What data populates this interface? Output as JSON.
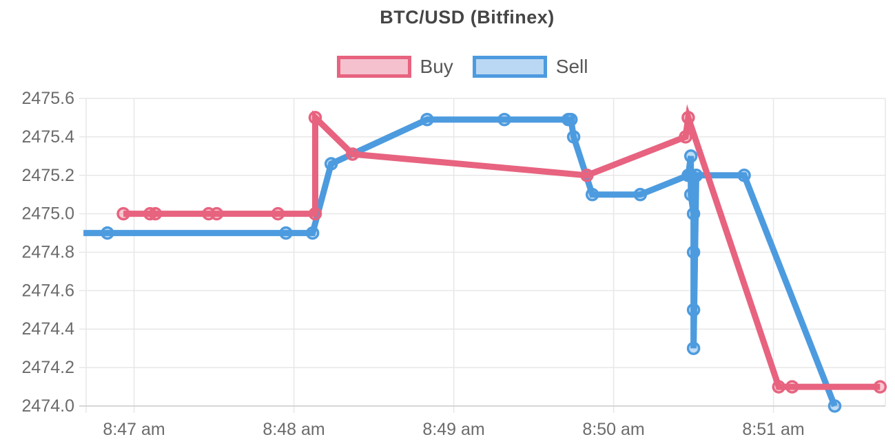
{
  "chart_data": {
    "type": "line",
    "title": "BTC/USD (Bitfinex)",
    "legend_position": "top",
    "grid": true,
    "x_axis": {
      "start": "8:46:42",
      "end": "8:51:42",
      "ticks": [
        {
          "label": "8:47 am",
          "time": "8:47:00"
        },
        {
          "label": "8:48 am",
          "time": "8:48:00"
        },
        {
          "label": "8:49 am",
          "time": "8:49:00"
        },
        {
          "label": "8:50 am",
          "time": "8:50:00"
        },
        {
          "label": "8:51 am",
          "time": "8:51:00"
        }
      ]
    },
    "y_axis": {
      "min": 2474.0,
      "max": 2475.6,
      "tick_step": 0.2,
      "ticks": [
        2475.6,
        2475.4,
        2475.2,
        2475.0,
        2474.8,
        2474.6,
        2474.4,
        2474.2,
        2474.0
      ]
    },
    "colors": {
      "grid": "#e7e7e7",
      "axis_line": "#cccccc",
      "tick_text": "#6b6b6b",
      "title_text": "#454545",
      "legend_text": "#575757"
    },
    "series": [
      {
        "name": "Buy",
        "color": "#e7637f",
        "legend_fill": "#f5c1cf",
        "points": [
          {
            "time": "8:46:56",
            "value": 2475.0
          },
          {
            "time": "8:47:06",
            "value": 2475.0
          },
          {
            "time": "8:47:08",
            "value": 2475.0
          },
          {
            "time": "8:47:28",
            "value": 2475.0
          },
          {
            "time": "8:47:31",
            "value": 2475.0
          },
          {
            "time": "8:47:54",
            "value": 2475.0
          },
          {
            "time": "8:48:08",
            "value": 2475.0
          },
          {
            "time": "8:48:08",
            "value": 2475.5
          },
          {
            "time": "8:48:22",
            "value": 2475.31
          },
          {
            "time": "8:49:50",
            "value": 2475.2
          },
          {
            "time": "8:50:27",
            "value": 2475.4
          },
          {
            "time": "8:50:28",
            "value": 2475.5
          },
          {
            "time": "8:51:02",
            "value": 2474.1
          },
          {
            "time": "8:51:07",
            "value": 2474.1
          },
          {
            "time": "8:51:40",
            "value": 2474.1
          }
        ]
      },
      {
        "name": "Sell",
        "color": "#4d9bdf",
        "legend_fill": "#bad8f3",
        "points": [
          {
            "time": "8:46:41",
            "value": 2474.9,
            "marker": false
          },
          {
            "time": "8:46:50",
            "value": 2474.9
          },
          {
            "time": "8:47:57",
            "value": 2474.9
          },
          {
            "time": "8:48:07",
            "value": 2474.9
          },
          {
            "time": "8:48:14",
            "value": 2475.26
          },
          {
            "time": "8:48:50",
            "value": 2475.49
          },
          {
            "time": "8:49:19",
            "value": 2475.49
          },
          {
            "time": "8:49:43",
            "value": 2475.49
          },
          {
            "time": "8:49:44",
            "value": 2475.49
          },
          {
            "time": "8:49:45",
            "value": 2475.4
          },
          {
            "time": "8:49:52",
            "value": 2475.1
          },
          {
            "time": "8:50:10",
            "value": 2475.1
          },
          {
            "time": "8:50:28",
            "value": 2475.2
          },
          {
            "time": "8:50:29",
            "value": 2475.3
          },
          {
            "time": "8:50:29",
            "value": 2475.2
          },
          {
            "time": "8:50:29",
            "value": 2475.1
          },
          {
            "time": "8:50:30",
            "value": 2475.0
          },
          {
            "time": "8:50:30",
            "value": 2474.8
          },
          {
            "time": "8:50:30",
            "value": 2474.5
          },
          {
            "time": "8:50:30",
            "value": 2474.3
          },
          {
            "time": "8:50:31",
            "value": 2475.2
          },
          {
            "time": "8:50:49",
            "value": 2475.2
          },
          {
            "time": "8:51:23",
            "value": 2474.0
          }
        ]
      }
    ]
  }
}
